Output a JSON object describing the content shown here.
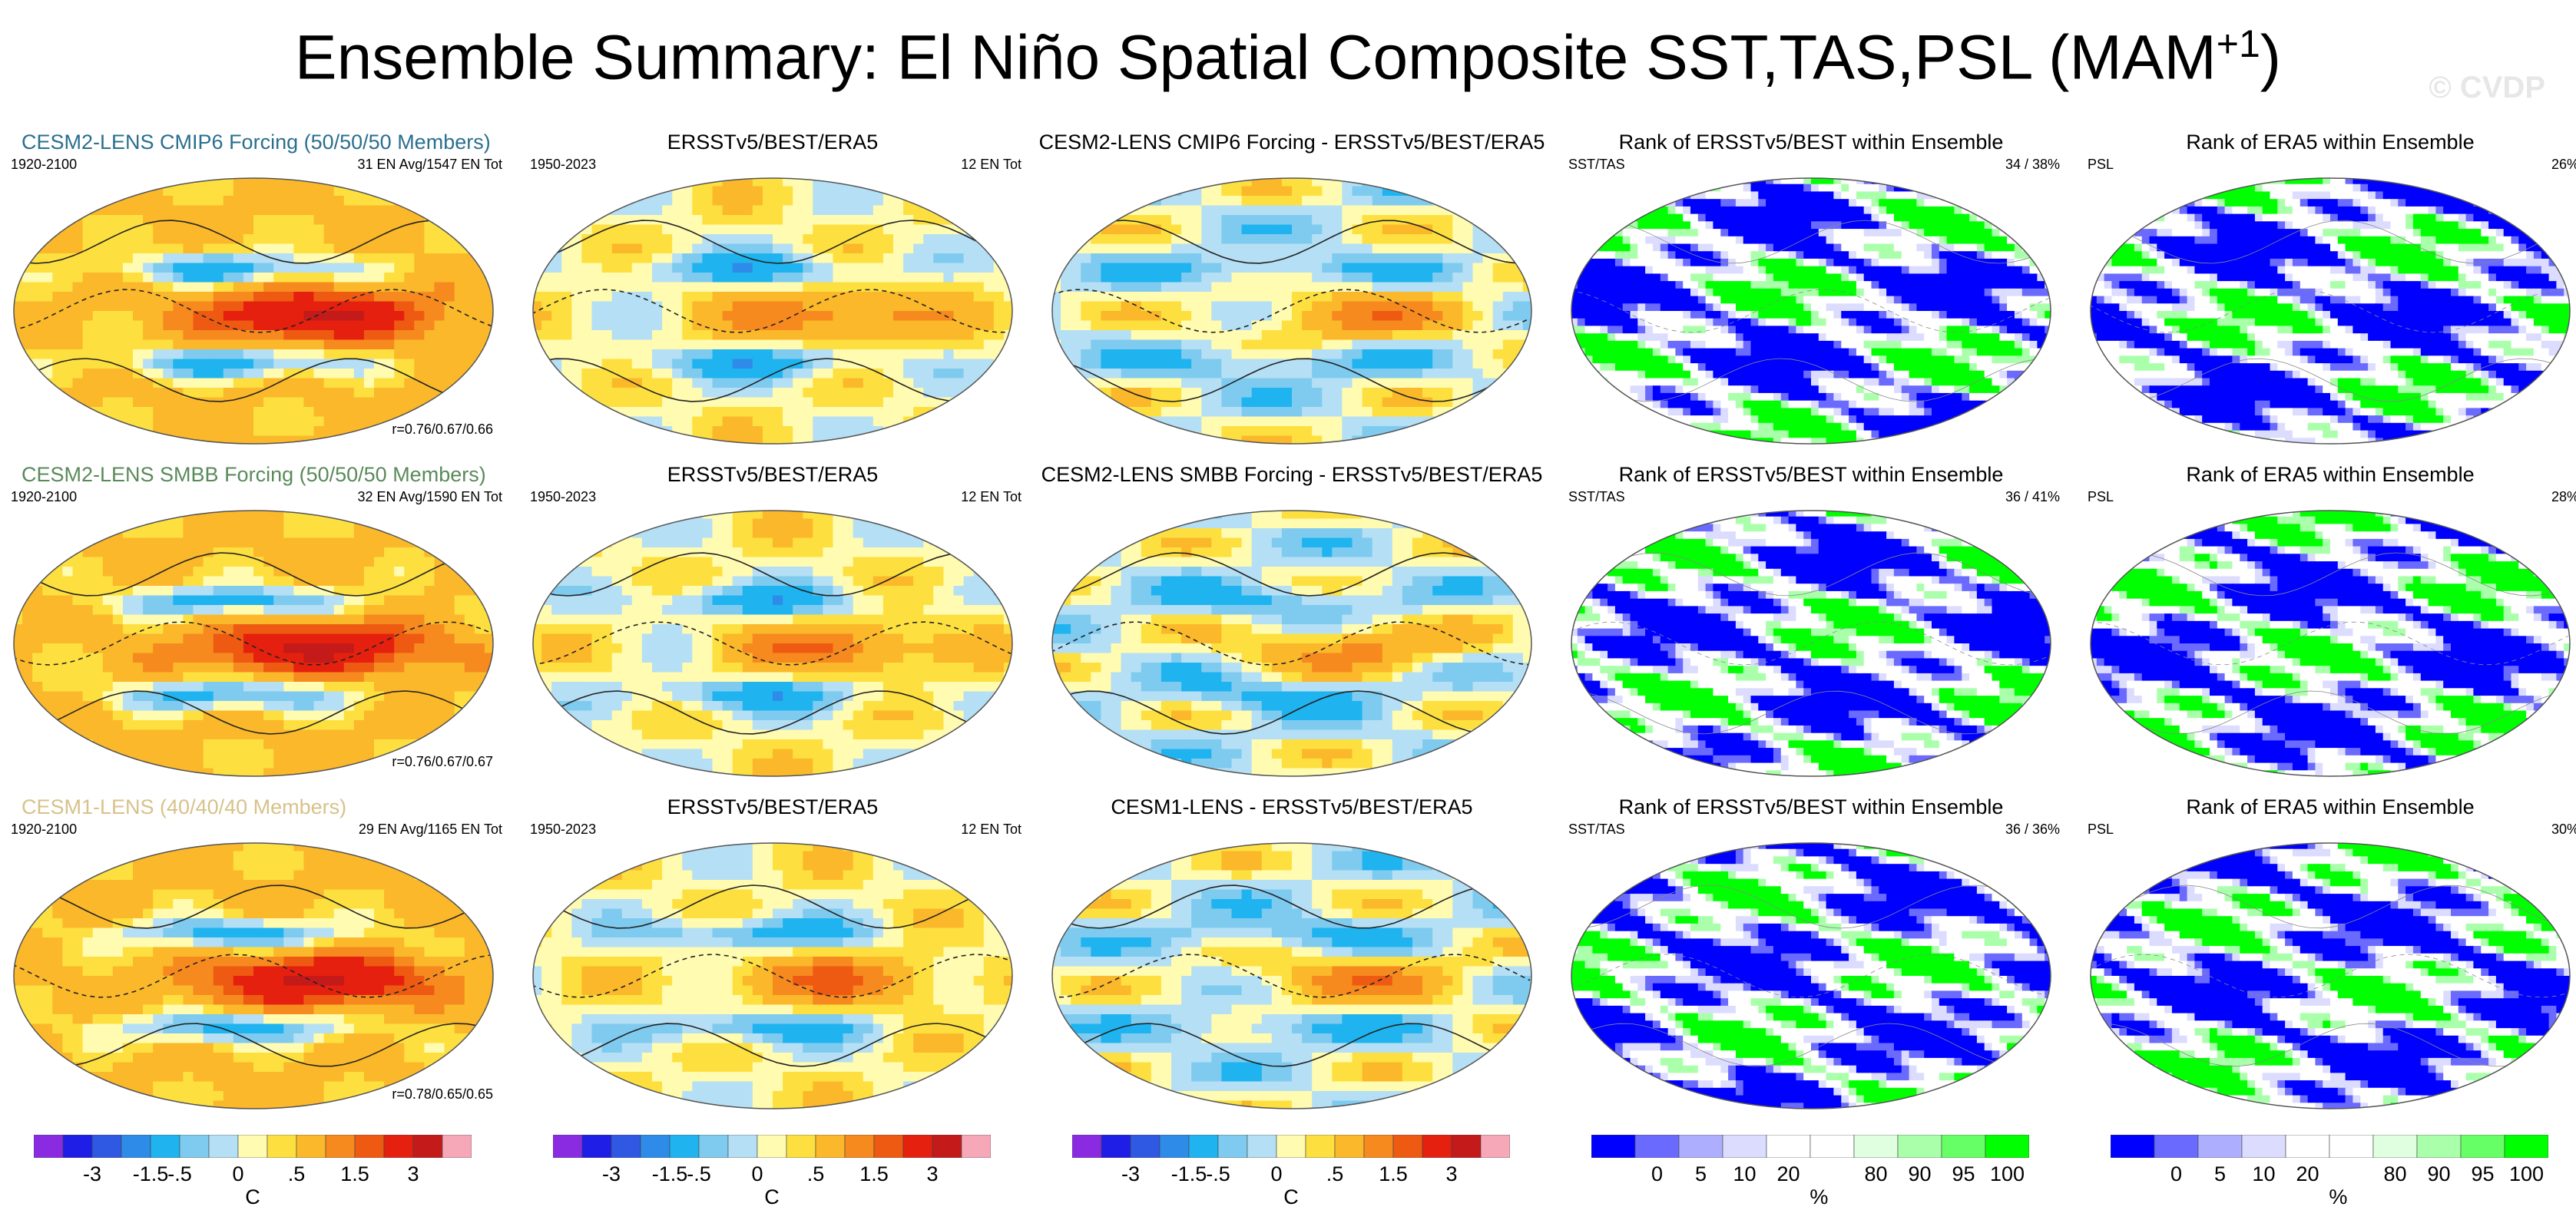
{
  "title_main": "Ensemble Summary: El Niño Spatial Composite SST,TAS,PSL (MAM",
  "title_sup": "+1",
  "title_end": ")",
  "watermark": "© CVDP",
  "rows": [
    {
      "model_title": "CESM2-LENS CMIP6 Forcing (50/50/50 Members)",
      "model_title_color": "#2a6f8f",
      "model_period": "1920-2100",
      "model_count": "31 EN Avg/1547 EN Tot",
      "model_corr": "r=0.76/0.67/0.66",
      "obs_title": "ERSSTv5/BEST/ERA5",
      "obs_period": "1950-2023",
      "obs_count": "12 EN Tot",
      "diff_title": "CESM2-LENS CMIP6 Forcing - ERSSTv5/BEST/ERA5",
      "rank1_title": "Rank of ERSSTv5/BEST within Ensemble",
      "rank1_label": "SST/TAS",
      "rank1_pct": "34 / 38%",
      "rank2_title": "Rank of ERA5 within Ensemble",
      "rank2_label": "PSL",
      "rank2_pct": "26%"
    },
    {
      "model_title": "CESM2-LENS SMBB Forcing (50/50/50 Members)",
      "model_title_color": "#5a8a5a",
      "model_period": "1920-2100",
      "model_count": "32 EN Avg/1590 EN Tot",
      "model_corr": "r=0.76/0.67/0.67",
      "obs_title": "ERSSTv5/BEST/ERA5",
      "obs_period": "1950-2023",
      "obs_count": "12 EN Tot",
      "diff_title": "CESM2-LENS SMBB Forcing - ERSSTv5/BEST/ERA5",
      "rank1_title": "Rank of ERSSTv5/BEST within Ensemble",
      "rank1_label": "SST/TAS",
      "rank1_pct": "36 / 41%",
      "rank2_title": "Rank of ERA5 within Ensemble",
      "rank2_label": "PSL",
      "rank2_pct": "28%"
    },
    {
      "model_title": "CESM1-LENS (40/40/40 Members)",
      "model_title_color": "#d8c28a",
      "model_period": "1920-2100",
      "model_count": "29 EN Avg/1165 EN Tot",
      "model_corr": "r=0.78/0.65/0.65",
      "obs_title": "ERSSTv5/BEST/ERA5",
      "obs_period": "1950-2023",
      "obs_count": "12 EN Tot",
      "diff_title": "CESM1-LENS - ERSSTv5/BEST/ERA5",
      "rank1_title": "Rank of ERSSTv5/BEST within Ensemble",
      "rank1_label": "SST/TAS",
      "rank1_pct": "36 / 36%",
      "rank2_title": "Rank of ERA5 within Ensemble",
      "rank2_label": "PSL",
      "rank2_pct": "30%"
    }
  ],
  "chart_data": {
    "type": "heatmap",
    "description_units": "temperature composite",
    "temp_colorbar": {
      "colors": [
        "#8a2be2",
        "#1e1ee6",
        "#2f58e3",
        "#2f8be8",
        "#1fb4ef",
        "#7fcbf0",
        "#b5dff4",
        "#fffbb0",
        "#fde040",
        "#fbb82a",
        "#f78a1e",
        "#ef5a12",
        "#e5200f",
        "#c41a1a",
        "#f7a8b8"
      ],
      "ticks": [
        "-3",
        "-1.5",
        "-.5",
        "0",
        ".5",
        "1.5",
        "3"
      ],
      "unit": "C"
    },
    "rank_colorbar": {
      "colors": [
        "#0000ff",
        "#6a6aff",
        "#aeaeff",
        "#dcdcff",
        "#ffffff",
        "#ffffff",
        "#e0ffe0",
        "#aaffaa",
        "#66ff66",
        "#00ff00"
      ],
      "ticks": [
        "0",
        "5",
        "10",
        "20",
        "80",
        "90",
        "95",
        "100"
      ],
      "unit": "%"
    }
  }
}
